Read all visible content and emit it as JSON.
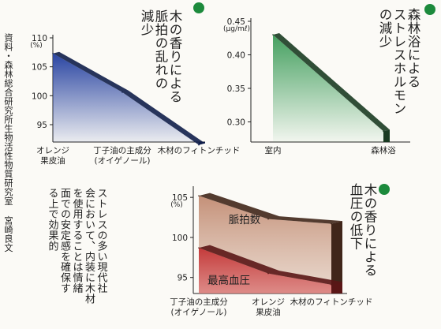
{
  "credit": {
    "text": "資料・森林総合研究所生物活性物質研究室 宮崎良文"
  },
  "body_text": [
    "ストレスの多い現代社",
    "会において、内装に木材",
    "を使用することは情緒",
    "面での安定感を確保す",
    "る上で効果的"
  ],
  "colors": {
    "accent_green": "#1c8a3c"
  },
  "chart_data": [
    {
      "type": "area",
      "title": [
        "木の香りによる",
        "脈拍の乱れの",
        "減少"
      ],
      "categories": [
        "オレンジ\n果皮油",
        "丁子油の主成分\n(オイゲノール)",
        "木材のフィトンチッド"
      ],
      "values": [
        107.3,
        100.6,
        91.5
      ],
      "yunit": "(%)",
      "yticks": [
        95,
        100,
        105,
        110
      ],
      "ylim": [
        92,
        110
      ],
      "fill_color": "#3049a0",
      "shadow_color": "#101e4a"
    },
    {
      "type": "area",
      "title": [
        "森林浴による",
        "ストレスホルモン",
        "の減少"
      ],
      "categories": [
        "室内",
        "森林浴"
      ],
      "values": [
        0.43,
        0.286
      ],
      "yunit": "(μg/mℓ)",
      "yticks": [
        0.3,
        0.35,
        0.4,
        0.45
      ],
      "ylim": [
        0.27,
        0.45
      ],
      "fill_color": "#49a060",
      "shadow_color": "#1a3b22"
    },
    {
      "type": "area",
      "title": [
        "木の香りによる",
        "血圧の低下"
      ],
      "categories": [
        "丁子油の主成分\n(オイゲノール)",
        "オレンジ\n果皮油",
        "木材のフィトンチッド"
      ],
      "yunit": "(%)",
      "yticks": [
        95,
        100,
        105
      ],
      "ylim": [
        93,
        106
      ],
      "series": [
        {
          "name": "脈拍数",
          "values": [
            105.2,
            102.3,
            101.7
          ],
          "color": "#c8967c",
          "shadow": "#40261a"
        },
        {
          "name": "最高血圧",
          "values": [
            98.7,
            95.5,
            94.1
          ],
          "color": "#c64040",
          "shadow": "#5a1616"
        }
      ]
    }
  ]
}
